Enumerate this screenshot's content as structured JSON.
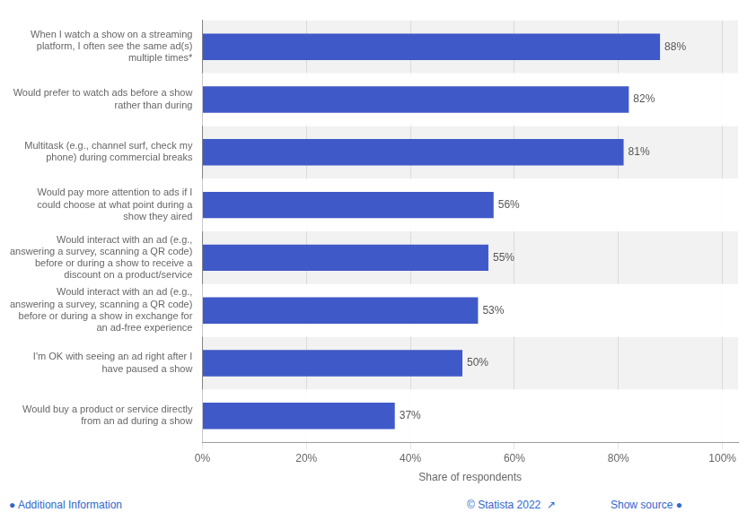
{
  "chart_data": {
    "type": "bar",
    "orientation": "horizontal",
    "xlabel": "Share of respondents",
    "categories": [
      "Would buy a product or service directly\nfrom an ad during a show",
      "I'm OK with seeing an ad right after I\nhave paused a show",
      "Would interact with an ad (e.g.,\nanswering a survey, scanning a QR code)\nbefore or during a show in exchange for\nan ad-free experience",
      "Would interact with an ad (e.g.,\nanswering a survey, scanning a QR code)\nbefore or during a show to receive a\ndiscount on a product/service",
      "Would pay more attention to ads if I\ncould choose at what point during a\nshow they aired",
      "Multitask (e.g., channel surf, check my\nphone) during commercial breaks",
      "Would prefer to watch ads before a show\nrather than during",
      "When I watch a show on a streaming\nplatform, I often see the same ad(s)\nmultiple times*"
    ],
    "values": [
      37,
      50,
      53,
      55,
      56,
      81,
      82,
      88
    ],
    "value_labels": [
      "37%",
      "50%",
      "53%",
      "55%",
      "56%",
      "81%",
      "82%",
      "88%"
    ],
    "data_labels": true,
    "color": "#4059c8",
    "xlim": [
      0,
      103
    ],
    "xticks": [
      {
        "value": 0,
        "label": "0%"
      },
      {
        "value": 20,
        "label": "20%"
      },
      {
        "value": 40,
        "label": "40%"
      },
      {
        "value": 60,
        "label": "60%"
      },
      {
        "value": 80,
        "label": "80%"
      },
      {
        "value": 100,
        "label": "100%"
      }
    ],
    "grid": true,
    "annotations": [
      "● Additional Information",
      "© Statista 2022  ↗",
      "Show source ●"
    ]
  }
}
